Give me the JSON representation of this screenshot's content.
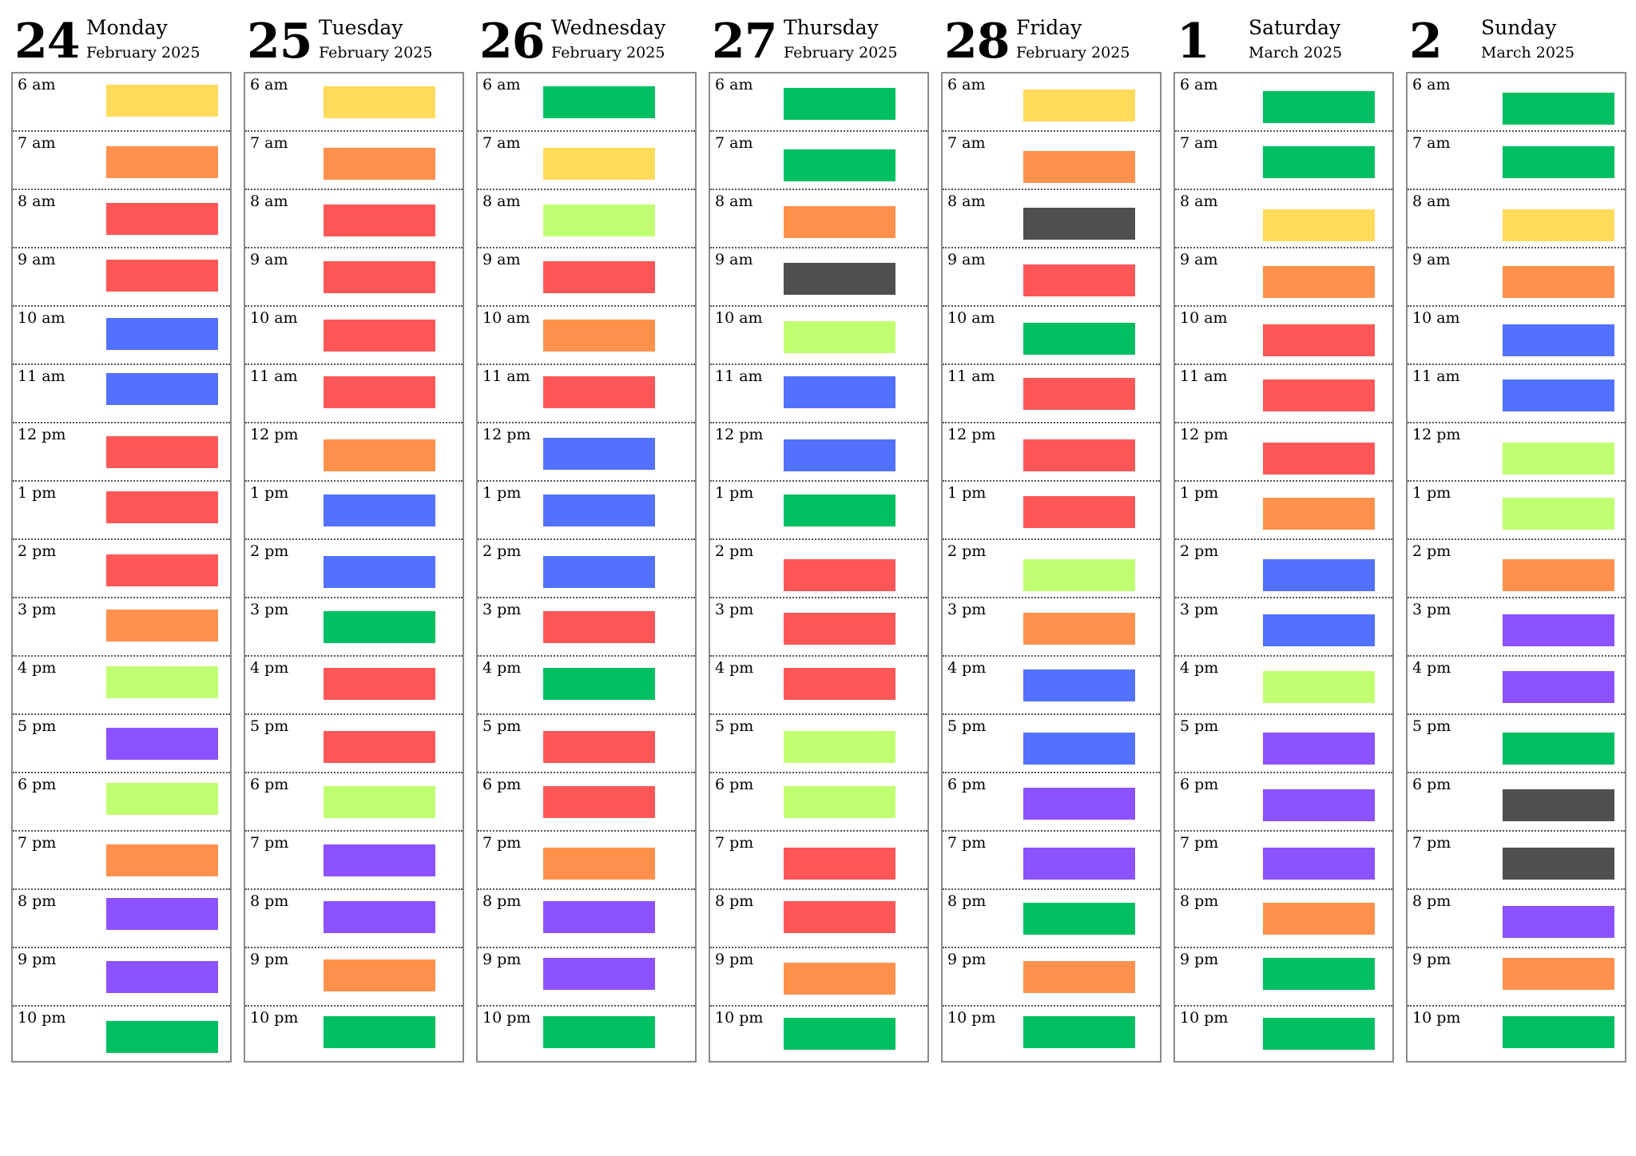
{
  "palette": {
    "yellow": "#ffdb5c",
    "orange": "#ff914d",
    "red": "#ff5757",
    "blue": "#5271ff",
    "purple": "#8c52ff",
    "lime": "#c1ff72",
    "green": "#00bf63",
    "dark": "#4f4f4f"
  },
  "hours": [
    "6 am",
    "7 am",
    "8 am",
    "9 am",
    "10 am",
    "11 am",
    "12 pm",
    "1 pm",
    "2 pm",
    "3 pm",
    "4 pm",
    "5 pm",
    "6 pm",
    "7 pm",
    "8 pm",
    "9 pm",
    "10 pm"
  ],
  "days": [
    {
      "number": "24",
      "name": "Monday",
      "month": "February 2025",
      "events": [
        "yellow",
        "orange",
        "red",
        "red",
        "blue",
        "blue",
        "red",
        "red",
        "red",
        "orange",
        "lime",
        "purple",
        "lime",
        "orange",
        "purple",
        "purple",
        "green"
      ]
    },
    {
      "number": "25",
      "name": "Tuesday",
      "month": "February 2025",
      "events": [
        "yellow",
        "orange",
        "red",
        "red",
        "red",
        "red",
        "orange",
        "blue",
        "blue",
        "green",
        "red",
        "red",
        "lime",
        "purple",
        "purple",
        "orange",
        "green"
      ]
    },
    {
      "number": "26",
      "name": "Wednesday",
      "month": "February 2025",
      "events": [
        "green",
        "yellow",
        "lime",
        "red",
        "orange",
        "red",
        "blue",
        "blue",
        "blue",
        "red",
        "green",
        "red",
        "red",
        "orange",
        "purple",
        "purple",
        "green"
      ]
    },
    {
      "number": "27",
      "name": "Thursday",
      "month": "February 2025",
      "events": [
        "green",
        "green",
        "orange",
        "dark",
        "lime",
        "blue",
        "blue",
        "green",
        "red",
        "red",
        "red",
        "lime",
        "lime",
        "red",
        "red",
        "orange",
        "green"
      ]
    },
    {
      "number": "28",
      "name": "Friday",
      "month": "February 2025",
      "events": [
        "yellow",
        "orange",
        "dark",
        "red",
        "green",
        "red",
        "red",
        "red",
        "lime",
        "orange",
        "blue",
        "blue",
        "purple",
        "purple",
        "green",
        "orange",
        "green"
      ]
    },
    {
      "number": "1",
      "name": "Saturday",
      "month": "March 2025",
      "events": [
        "green",
        "green",
        "yellow",
        "orange",
        "red",
        "red",
        "red",
        "orange",
        "blue",
        "blue",
        "lime",
        "purple",
        "purple",
        "purple",
        "orange",
        "green",
        "green"
      ]
    },
    {
      "number": "2",
      "name": "Sunday",
      "month": "March 2025",
      "events": [
        "green",
        "green",
        "yellow",
        "orange",
        "blue",
        "blue",
        "lime",
        "lime",
        "orange",
        "purple",
        "purple",
        "green",
        "dark",
        "dark",
        "purple",
        "orange",
        "green"
      ]
    }
  ]
}
